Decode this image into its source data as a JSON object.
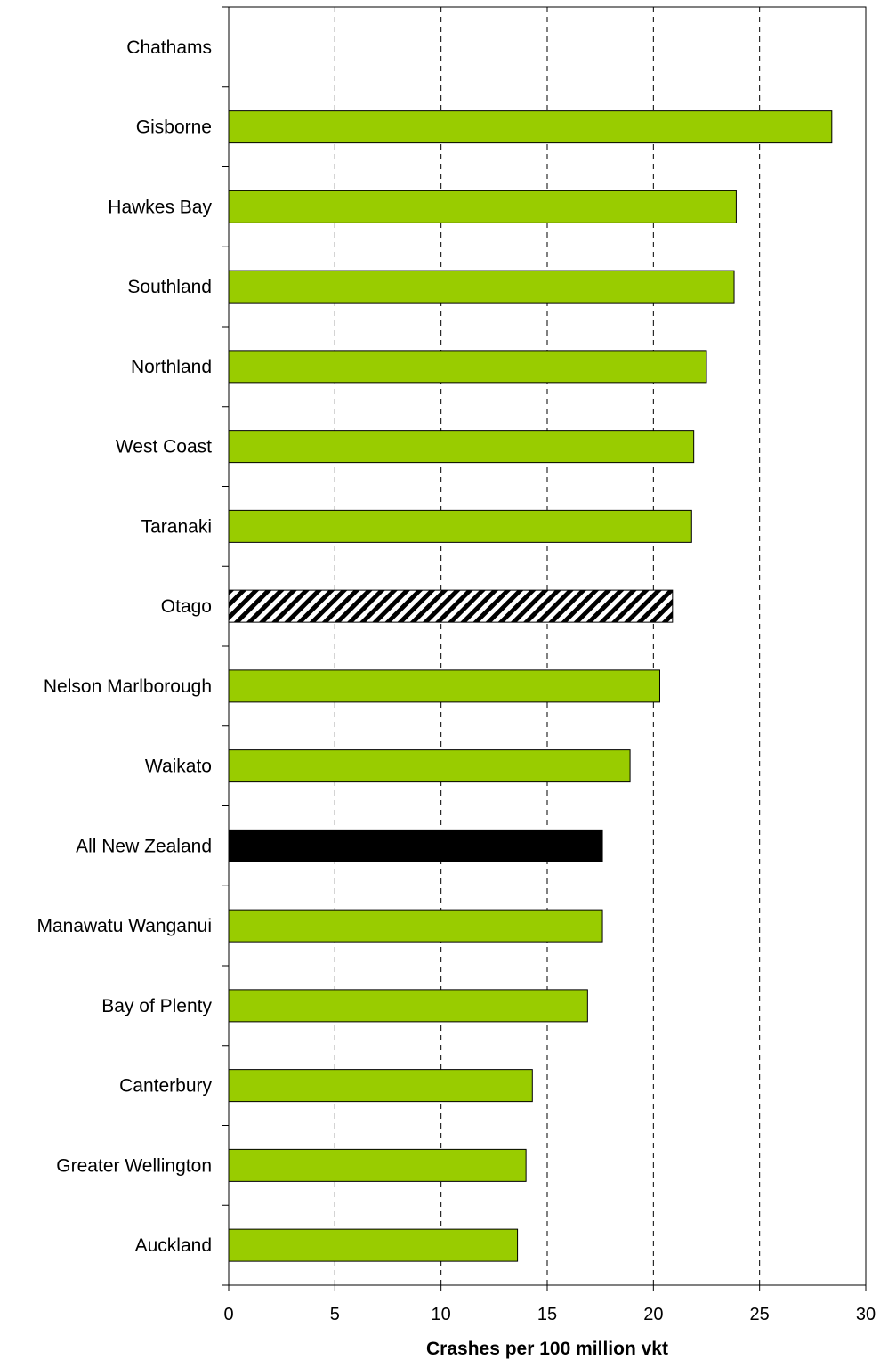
{
  "chart_data": {
    "type": "bar",
    "orientation": "horizontal",
    "title": "",
    "xlabel": "Crashes per 100 million vkt",
    "ylabel": "",
    "xlim": [
      0,
      30
    ],
    "xticks": [
      "0",
      "5",
      "10",
      "15",
      "20",
      "25",
      "30"
    ],
    "grid": "vertical dashed",
    "legend": "none",
    "categories": [
      "Chathams",
      "Gisborne",
      "Hawkes Bay",
      "Southland",
      "Northland",
      "West Coast",
      "Taranaki",
      "Otago",
      "Nelson Marlborough",
      "Waikato",
      "All New Zealand",
      "Manawatu Wanganui",
      "Bay of Plenty",
      "Canterbury",
      "Greater Wellington",
      "Auckland"
    ],
    "values": [
      0,
      28.4,
      23.9,
      23.8,
      22.5,
      21.9,
      21.8,
      20.9,
      20.3,
      18.9,
      17.6,
      17.6,
      16.9,
      14.3,
      14.0,
      13.6
    ],
    "bar_styles": [
      "green",
      "green",
      "green",
      "green",
      "green",
      "green",
      "green",
      "hatched",
      "green",
      "green",
      "black",
      "green",
      "green",
      "green",
      "green",
      "green"
    ],
    "colors": {
      "green": "#99cc00",
      "black": "#000000",
      "hatch": "#000000",
      "outline": "#000000"
    }
  }
}
